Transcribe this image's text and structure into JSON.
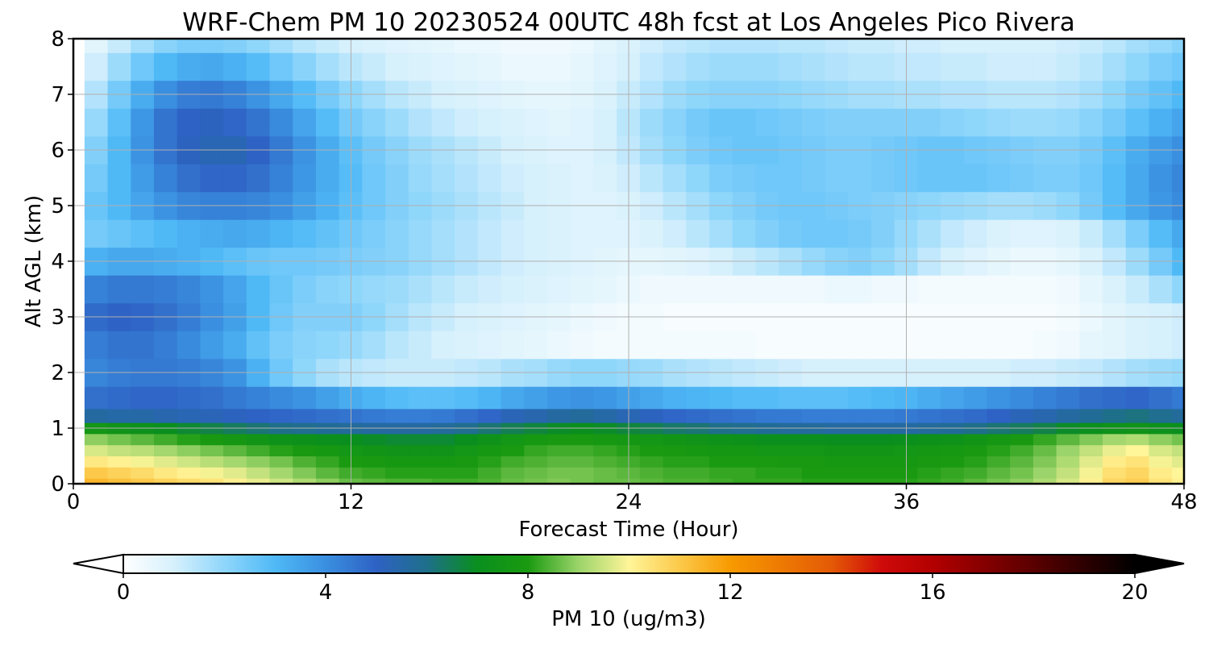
{
  "chart_data": {
    "type": "heatmap",
    "title": "WRF-Chem PM 10  20230524 00UTC 48h fcst at Los Angeles Pico Rivera",
    "xlabel": "Forecast Time (Hour)",
    "ylabel": "Alt AGL (km)",
    "xlim": [
      0,
      48
    ],
    "ylim": [
      0,
      8
    ],
    "xticks": [
      0,
      12,
      24,
      36,
      48
    ],
    "yticks": [
      0,
      1,
      2,
      3,
      4,
      5,
      6,
      7,
      8
    ],
    "grid": true,
    "colorbar": {
      "label": "PM 10  (ug/m3)",
      "ticks": [
        0,
        4,
        8,
        12,
        16,
        20
      ],
      "range": [
        0,
        20
      ],
      "extend": "both",
      "orientation": "horizontal",
      "stops": [
        {
          "value": 0,
          "color": "#ffffff"
        },
        {
          "value": 1,
          "color": "#d6f0fc"
        },
        {
          "value": 2,
          "color": "#8fd6fb"
        },
        {
          "value": 3,
          "color": "#4fb9f6"
        },
        {
          "value": 4,
          "color": "#3a8fe0"
        },
        {
          "value": 5,
          "color": "#2e62c4"
        },
        {
          "value": 6,
          "color": "#1e6f8a"
        },
        {
          "value": 7,
          "color": "#0a8f1e"
        },
        {
          "value": 8,
          "color": "#1a9a10"
        },
        {
          "value": 9,
          "color": "#9bd46a"
        },
        {
          "value": 10,
          "color": "#fff599"
        },
        {
          "value": 11,
          "color": "#fcc94a"
        },
        {
          "value": 12,
          "color": "#f79a00"
        },
        {
          "value": 14,
          "color": "#e45a06"
        },
        {
          "value": 15,
          "color": "#cf0a0a"
        },
        {
          "value": 16,
          "color": "#b30000"
        },
        {
          "value": 18,
          "color": "#5a0000"
        },
        {
          "value": 20,
          "color": "#000000"
        }
      ]
    },
    "time_hours": [
      0,
      1,
      2,
      3,
      4,
      5,
      6,
      7,
      8,
      9,
      10,
      11,
      12,
      13,
      14,
      15,
      16,
      17,
      18,
      19,
      20,
      21,
      22,
      23,
      24,
      25,
      26,
      27,
      28,
      29,
      30,
      31,
      32,
      33,
      34,
      35,
      36,
      37,
      38,
      39,
      40,
      41,
      42,
      43,
      44,
      45,
      46,
      47,
      48
    ],
    "altitude_km": [
      0.0,
      0.2,
      0.4,
      0.6,
      0.8,
      1.0,
      1.2,
      1.5,
      2.0,
      2.5,
      3.0,
      3.5,
      4.0,
      4.5,
      5.0,
      5.5,
      6.0,
      6.5,
      7.0,
      7.5,
      8.0
    ],
    "pm10_ugm3": [
      [
        0.0,
        11.4,
        11.2,
        11.0,
        10.8,
        10.6,
        10.4,
        10.1,
        9.8,
        9.5,
        9.2,
        8.9,
        8.6,
        8.5,
        8.4,
        8.4,
        8.3,
        8.3,
        8.4,
        8.6,
        8.7,
        8.8,
        8.7,
        8.6,
        8.6,
        8.5,
        8.4,
        8.4,
        8.3,
        8.2,
        8.2,
        8.2,
        8.1,
        8.1,
        8.1,
        8.1,
        8.1,
        8.2,
        8.3,
        8.5,
        8.7,
        8.9,
        9.2,
        9.6,
        10.1,
        10.7,
        10.9,
        10.4,
        10.1
      ],
      [
        0.0,
        11.0,
        10.8,
        10.6,
        10.3,
        10.1,
        9.9,
        9.7,
        9.4,
        9.1,
        8.8,
        8.5,
        8.3,
        8.2,
        8.1,
        8.1,
        8.1,
        8.1,
        8.3,
        8.5,
        8.6,
        8.7,
        8.7,
        8.6,
        8.5,
        8.4,
        8.3,
        8.3,
        8.2,
        8.2,
        8.1,
        8.1,
        8.0,
        8.0,
        8.0,
        8.0,
        8.0,
        8.1,
        8.2,
        8.3,
        8.5,
        8.7,
        9.0,
        9.4,
        9.9,
        10.5,
        10.7,
        10.2,
        10.0
      ],
      [
        0.0,
        10.3,
        10.1,
        9.9,
        9.7,
        9.5,
        9.3,
        9.1,
        8.9,
        8.7,
        8.4,
        8.2,
        8.0,
        7.9,
        7.8,
        7.8,
        7.8,
        7.9,
        8.1,
        8.3,
        8.4,
        8.5,
        8.5,
        8.4,
        8.3,
        8.2,
        8.1,
        8.1,
        8.0,
        8.0,
        8.0,
        7.9,
        7.9,
        7.8,
        7.8,
        7.8,
        7.8,
        7.9,
        8.0,
        8.1,
        8.3,
        8.5,
        8.8,
        9.2,
        9.7,
        10.2,
        10.4,
        9.9,
        9.7
      ],
      [
        0.0,
        9.6,
        9.4,
        9.3,
        9.1,
        8.9,
        8.7,
        8.5,
        8.3,
        8.1,
        7.9,
        7.8,
        7.6,
        7.5,
        7.4,
        7.4,
        7.4,
        7.6,
        7.8,
        8.0,
        8.2,
        8.3,
        8.3,
        8.2,
        8.1,
        8.0,
        7.9,
        7.8,
        7.7,
        7.7,
        7.6,
        7.6,
        7.6,
        7.5,
        7.5,
        7.5,
        7.6,
        7.7,
        7.8,
        7.9,
        8.1,
        8.3,
        8.6,
        9.0,
        9.4,
        9.8,
        10.0,
        9.6,
        9.4
      ],
      [
        0.0,
        8.9,
        8.7,
        8.5,
        8.3,
        8.1,
        7.9,
        7.7,
        7.5,
        7.3,
        7.2,
        7.1,
        7.0,
        6.9,
        6.8,
        6.8,
        6.8,
        7.0,
        7.3,
        7.6,
        7.8,
        7.9,
        7.9,
        7.8,
        7.7,
        7.6,
        7.5,
        7.4,
        7.3,
        7.2,
        7.1,
        7.1,
        7.1,
        7.0,
        7.0,
        7.0,
        7.1,
        7.2,
        7.3,
        7.5,
        7.7,
        7.9,
        8.2,
        8.5,
        8.8,
        9.1,
        9.2,
        8.9,
        8.7
      ],
      [
        0.0,
        7.6,
        7.4,
        7.2,
        7.0,
        6.8,
        6.6,
        6.4,
        6.2,
        6.0,
        5.9,
        5.8,
        5.7,
        5.6,
        5.6,
        5.6,
        5.7,
        5.9,
        6.2,
        6.5,
        6.7,
        6.9,
        7.0,
        6.9,
        6.7,
        6.5,
        6.3,
        6.2,
        6.0,
        5.9,
        5.8,
        5.7,
        5.7,
        5.6,
        5.6,
        5.6,
        5.6,
        5.7,
        5.8,
        6.0,
        6.2,
        6.4,
        6.6,
        6.9,
        7.1,
        7.3,
        7.4,
        7.2,
        7.0
      ],
      [
        0.0,
        5.6,
        5.5,
        5.5,
        5.4,
        5.3,
        5.2,
        5.1,
        5.0,
        4.9,
        4.8,
        4.7,
        4.6,
        4.5,
        4.4,
        4.4,
        4.5,
        4.7,
        4.9,
        5.2,
        5.4,
        5.6,
        5.7,
        5.5,
        5.3,
        5.1,
        4.9,
        4.8,
        4.7,
        4.6,
        4.5,
        4.5,
        4.4,
        4.4,
        4.4,
        4.4,
        4.5,
        4.6,
        4.7,
        4.8,
        5.0,
        5.2,
        5.4,
        5.6,
        5.8,
        6.0,
        6.1,
        5.9,
        5.7
      ],
      [
        0.0,
        4.7,
        4.8,
        4.9,
        4.9,
        4.8,
        4.7,
        4.5,
        4.3,
        4.1,
        3.9,
        3.6,
        3.3,
        3.1,
        2.9,
        2.8,
        2.8,
        2.9,
        3.1,
        3.4,
        3.6,
        3.8,
        3.9,
        3.8,
        3.6,
        3.4,
        3.2,
        3.1,
        3.0,
        2.9,
        2.9,
        2.8,
        2.8,
        2.8,
        2.9,
        3.0,
        3.1,
        3.3,
        3.5,
        3.7,
        3.9,
        4.1,
        4.3,
        4.5,
        4.7,
        4.8,
        4.9,
        4.7,
        4.5
      ],
      [
        0.0,
        4.2,
        4.4,
        4.5,
        4.5,
        4.4,
        4.2,
        3.9,
        3.2,
        2.5,
        2.0,
        1.6,
        1.4,
        1.3,
        1.2,
        1.2,
        1.2,
        1.3,
        1.4,
        1.6,
        1.7,
        1.9,
        2.0,
        2.0,
        1.9,
        1.8,
        1.6,
        1.5,
        1.4,
        1.3,
        1.2,
        1.1,
        1.0,
        1.0,
        1.0,
        1.0,
        1.0,
        1.0,
        1.0,
        1.0,
        1.0,
        1.1,
        1.1,
        1.2,
        1.3,
        1.5,
        1.7,
        1.8,
        1.9
      ],
      [
        0.0,
        4.4,
        4.6,
        4.6,
        4.4,
        4.1,
        3.7,
        3.3,
        2.7,
        2.3,
        2.1,
        2.0,
        1.9,
        1.7,
        1.4,
        1.2,
        1.0,
        0.9,
        0.8,
        0.7,
        0.6,
        0.5,
        0.4,
        0.3,
        0.3,
        0.3,
        0.3,
        0.3,
        0.3,
        0.3,
        0.2,
        0.2,
        0.2,
        0.2,
        0.2,
        0.2,
        0.2,
        0.2,
        0.2,
        0.2,
        0.2,
        0.2,
        0.3,
        0.4,
        0.6,
        0.7,
        0.9,
        1.0,
        1.1
      ],
      [
        0.0,
        4.8,
        5.0,
        4.9,
        4.7,
        4.4,
        4.0,
        3.6,
        3.0,
        2.5,
        2.2,
        2.2,
        2.2,
        2.0,
        1.7,
        1.4,
        1.2,
        1.0,
        0.9,
        0.8,
        0.7,
        0.6,
        0.5,
        0.4,
        0.3,
        0.3,
        0.2,
        0.2,
        0.2,
        0.2,
        0.2,
        0.2,
        0.2,
        0.2,
        0.2,
        0.2,
        0.2,
        0.2,
        0.2,
        0.2,
        0.2,
        0.2,
        0.2,
        0.3,
        0.5,
        0.7,
        0.9,
        1.0,
        1.1
      ],
      [
        0.0,
        4.3,
        4.5,
        4.5,
        4.4,
        4.2,
        3.9,
        3.5,
        3.0,
        2.6,
        2.3,
        2.1,
        2.0,
        1.9,
        1.8,
        1.6,
        1.4,
        1.2,
        1.1,
        1.0,
        0.9,
        0.8,
        0.7,
        0.6,
        0.5,
        0.4,
        0.4,
        0.4,
        0.4,
        0.4,
        0.4,
        0.4,
        0.4,
        0.5,
        0.5,
        0.4,
        0.4,
        0.3,
        0.3,
        0.3,
        0.3,
        0.3,
        0.3,
        0.4,
        0.6,
        0.9,
        1.2,
        1.6,
        2.0
      ],
      [
        0.0,
        3.2,
        3.4,
        3.4,
        3.3,
        3.2,
        3.0,
        2.8,
        2.6,
        2.5,
        2.5,
        2.4,
        2.3,
        2.2,
        2.1,
        1.9,
        1.7,
        1.5,
        1.3,
        1.1,
        1.0,
        0.9,
        0.8,
        0.7,
        0.6,
        0.6,
        0.7,
        0.8,
        1.0,
        1.2,
        1.4,
        1.6,
        1.9,
        2.1,
        2.2,
        2.0,
        1.7,
        1.3,
        1.0,
        0.8,
        0.6,
        0.5,
        0.5,
        0.6,
        0.9,
        1.3,
        1.8,
        2.4,
        3.0
      ],
      [
        0.0,
        2.4,
        2.6,
        2.8,
        3.0,
        3.2,
        3.3,
        3.4,
        3.3,
        3.1,
        2.9,
        2.7,
        2.5,
        2.3,
        2.1,
        1.9,
        1.7,
        1.5,
        1.3,
        1.1,
        1.0,
        0.9,
        0.8,
        0.8,
        0.8,
        0.9,
        1.1,
        1.4,
        1.7,
        2.0,
        2.2,
        2.4,
        2.5,
        2.5,
        2.4,
        2.2,
        1.9,
        1.6,
        1.3,
        1.1,
        0.9,
        0.8,
        0.8,
        0.9,
        1.2,
        1.7,
        2.3,
        2.9,
        3.4
      ],
      [
        0.0,
        2.6,
        3.0,
        3.5,
        3.9,
        4.2,
        4.3,
        4.3,
        4.2,
        4.0,
        3.6,
        3.2,
        2.8,
        2.5,
        2.2,
        2.0,
        1.8,
        1.6,
        1.4,
        1.2,
        1.0,
        0.9,
        0.8,
        0.8,
        0.9,
        1.1,
        1.4,
        1.7,
        2.0,
        2.2,
        2.4,
        2.5,
        2.5,
        2.4,
        2.3,
        2.2,
        2.1,
        2.0,
        1.9,
        1.8,
        1.7,
        1.7,
        1.8,
        2.0,
        2.4,
        2.9,
        3.4,
        3.8,
        4.1
      ],
      [
        0.0,
        2.4,
        3.0,
        3.7,
        4.3,
        4.7,
        4.9,
        4.9,
        4.7,
        4.3,
        3.8,
        3.3,
        2.9,
        2.5,
        2.2,
        1.9,
        1.7,
        1.5,
        1.3,
        1.1,
        1.0,
        0.9,
        0.8,
        0.9,
        1.1,
        1.4,
        1.7,
        2.0,
        2.3,
        2.4,
        2.5,
        2.5,
        2.4,
        2.3,
        2.3,
        2.4,
        2.5,
        2.6,
        2.6,
        2.6,
        2.5,
        2.4,
        2.3,
        2.3,
        2.5,
        2.9,
        3.4,
        3.9,
        4.2
      ],
      [
        0.0,
        2.2,
        3.0,
        3.9,
        4.6,
        5.1,
        5.3,
        5.3,
        5.0,
        4.5,
        3.9,
        3.3,
        2.8,
        2.4,
        2.1,
        1.8,
        1.6,
        1.4,
        1.2,
        1.0,
        0.9,
        0.8,
        0.8,
        1.0,
        1.3,
        1.7,
        2.0,
        2.3,
        2.5,
        2.6,
        2.6,
        2.5,
        2.4,
        2.3,
        2.3,
        2.4,
        2.5,
        2.6,
        2.6,
        2.5,
        2.4,
        2.3,
        2.2,
        2.2,
        2.4,
        2.8,
        3.3,
        3.7,
        4.0
      ],
      [
        0.0,
        1.9,
        2.8,
        3.8,
        4.6,
        5.0,
        5.1,
        4.9,
        4.6,
        4.1,
        3.5,
        2.9,
        2.4,
        2.1,
        1.8,
        1.5,
        1.3,
        1.1,
        1.0,
        0.9,
        0.8,
        0.7,
        0.8,
        1.0,
        1.4,
        1.8,
        2.1,
        2.4,
        2.6,
        2.6,
        2.5,
        2.4,
        2.3,
        2.2,
        2.2,
        2.2,
        2.2,
        2.2,
        2.1,
        2.0,
        1.9,
        1.8,
        1.8,
        1.9,
        2.1,
        2.4,
        2.8,
        3.2,
        3.5
      ],
      [
        0.0,
        1.5,
        2.4,
        3.3,
        4.0,
        4.4,
        4.5,
        4.3,
        3.9,
        3.4,
        2.9,
        2.4,
        2.0,
        1.7,
        1.4,
        1.2,
        1.0,
        0.9,
        0.8,
        0.7,
        0.6,
        0.6,
        0.7,
        0.9,
        1.2,
        1.5,
        1.8,
        2.0,
        2.1,
        2.1,
        2.1,
        2.0,
        1.9,
        1.8,
        1.7,
        1.7,
        1.6,
        1.6,
        1.5,
        1.5,
        1.4,
        1.4,
        1.4,
        1.5,
        1.7,
        2.0,
        2.4,
        2.7,
        3.0
      ],
      [
        0.0,
        1.1,
        1.8,
        2.5,
        3.0,
        3.3,
        3.4,
        3.2,
        2.9,
        2.5,
        2.1,
        1.7,
        1.4,
        1.2,
        1.0,
        0.9,
        0.8,
        0.7,
        0.6,
        0.5,
        0.5,
        0.5,
        0.6,
        0.8,
        1.0,
        1.3,
        1.5,
        1.7,
        1.8,
        1.8,
        1.8,
        1.7,
        1.6,
        1.5,
        1.4,
        1.4,
        1.3,
        1.3,
        1.2,
        1.2,
        1.1,
        1.1,
        1.1,
        1.2,
        1.4,
        1.7,
        2.0,
        2.3,
        2.5
      ],
      [
        0.0,
        0.7,
        1.2,
        1.7,
        2.1,
        2.3,
        2.3,
        2.2,
        2.0,
        1.7,
        1.4,
        1.2,
        1.0,
        0.9,
        0.8,
        0.7,
        0.6,
        0.5,
        0.5,
        0.4,
        0.4,
        0.4,
        0.5,
        0.7,
        0.9,
        1.1,
        1.3,
        1.4,
        1.5,
        1.5,
        1.5,
        1.4,
        1.4,
        1.3,
        1.2,
        1.2,
        1.1,
        1.1,
        1.0,
        1.0,
        1.0,
        1.0,
        1.0,
        1.1,
        1.2,
        1.4,
        1.7,
        1.9,
        2.1
      ]
    ]
  }
}
